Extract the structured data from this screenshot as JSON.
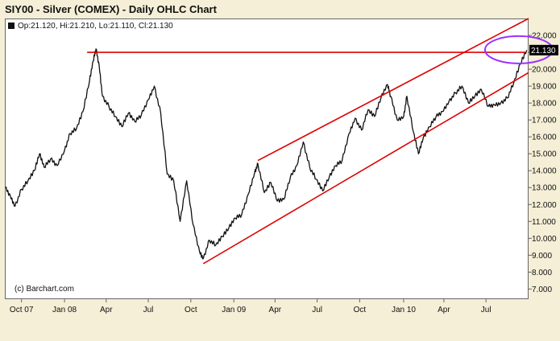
{
  "window": {
    "title": "SIY00 - Silver (COMEX) - Daily OHLC Chart"
  },
  "legend": {
    "icon": "black-square-icon",
    "ohlc": "Op:21.120, Hi:21.210, Lo:21.110, Cl:21.130"
  },
  "footer": {
    "credit": "(c) Barchart.com"
  },
  "colors": {
    "background": "#f4efd6",
    "plot": "#ffffff",
    "price": "#111111",
    "trendline": "#dd0000",
    "highlight": "#9b30ff",
    "last_price_bg": "#000000"
  },
  "chart_data": {
    "type": "line",
    "title": "SIY00 - Silver (COMEX) - Daily OHLC Chart",
    "xlabel": "",
    "ylabel": "",
    "grid": false,
    "legend_position": "top-left",
    "x_tick_labels": [
      "Oct 07",
      "Jan 08",
      "Apr",
      "Jul",
      "Oct",
      "Jan 09",
      "Apr",
      "Jul",
      "Oct",
      "Jan 10",
      "Apr",
      "Jul"
    ],
    "y_tick_labels": [
      "7.000",
      "8.000",
      "9.000",
      "10.000",
      "11.000",
      "12.000",
      "13.000",
      "14.000",
      "15.000",
      "16.000",
      "17.000",
      "18.000",
      "19.000",
      "20.000",
      "21.000",
      "22.000"
    ],
    "ylim": [
      6.4,
      23.0
    ],
    "xlim": [
      "2007-08-26",
      "2010-10-01"
    ],
    "last_price": "21.130",
    "series": [
      {
        "values": [
          {
            "x": "2007-08-27",
            "y": 13.0
          },
          {
            "x": "2007-09-07",
            "y": 12.5
          },
          {
            "x": "2007-09-17",
            "y": 11.9
          },
          {
            "x": "2007-10-01",
            "y": 12.9
          },
          {
            "x": "2007-10-15",
            "y": 13.4
          },
          {
            "x": "2007-10-29",
            "y": 14.0
          },
          {
            "x": "2007-11-09",
            "y": 15.0
          },
          {
            "x": "2007-11-19",
            "y": 14.2
          },
          {
            "x": "2007-12-03",
            "y": 14.7
          },
          {
            "x": "2007-12-17",
            "y": 14.3
          },
          {
            "x": "2008-01-02",
            "y": 15.2
          },
          {
            "x": "2008-01-14",
            "y": 16.2
          },
          {
            "x": "2008-01-28",
            "y": 16.5
          },
          {
            "x": "2008-02-11",
            "y": 17.5
          },
          {
            "x": "2008-02-25",
            "y": 19.3
          },
          {
            "x": "2008-03-04",
            "y": 20.5
          },
          {
            "x": "2008-03-10",
            "y": 21.2
          },
          {
            "x": "2008-03-17",
            "y": 20.2
          },
          {
            "x": "2008-03-24",
            "y": 18.4
          },
          {
            "x": "2008-04-07",
            "y": 17.8
          },
          {
            "x": "2008-04-21",
            "y": 17.2
          },
          {
            "x": "2008-05-05",
            "y": 16.6
          },
          {
            "x": "2008-05-19",
            "y": 17.4
          },
          {
            "x": "2008-06-02",
            "y": 16.9
          },
          {
            "x": "2008-06-16",
            "y": 17.3
          },
          {
            "x": "2008-07-01",
            "y": 18.2
          },
          {
            "x": "2008-07-14",
            "y": 19.0
          },
          {
            "x": "2008-07-28",
            "y": 17.4
          },
          {
            "x": "2008-08-11",
            "y": 13.8
          },
          {
            "x": "2008-08-25",
            "y": 13.4
          },
          {
            "x": "2008-09-08",
            "y": 11.0
          },
          {
            "x": "2008-09-22",
            "y": 13.4
          },
          {
            "x": "2008-10-06",
            "y": 10.8
          },
          {
            "x": "2008-10-20",
            "y": 9.2
          },
          {
            "x": "2008-10-28",
            "y": 8.8
          },
          {
            "x": "2008-11-10",
            "y": 9.9
          },
          {
            "x": "2008-11-24",
            "y": 9.6
          },
          {
            "x": "2008-12-08",
            "y": 10.1
          },
          {
            "x": "2008-12-22",
            "y": 10.6
          },
          {
            "x": "2009-01-05",
            "y": 11.2
          },
          {
            "x": "2009-01-19",
            "y": 11.4
          },
          {
            "x": "2009-02-02",
            "y": 12.6
          },
          {
            "x": "2009-02-16",
            "y": 13.9
          },
          {
            "x": "2009-02-23",
            "y": 14.4
          },
          {
            "x": "2009-03-09",
            "y": 12.7
          },
          {
            "x": "2009-03-23",
            "y": 13.3
          },
          {
            "x": "2009-04-06",
            "y": 12.2
          },
          {
            "x": "2009-04-20",
            "y": 12.3
          },
          {
            "x": "2009-05-04",
            "y": 13.6
          },
          {
            "x": "2009-05-18",
            "y": 14.3
          },
          {
            "x": "2009-06-01",
            "y": 15.7
          },
          {
            "x": "2009-06-15",
            "y": 14.2
          },
          {
            "x": "2009-06-29",
            "y": 13.5
          },
          {
            "x": "2009-07-13",
            "y": 12.8
          },
          {
            "x": "2009-07-27",
            "y": 13.6
          },
          {
            "x": "2009-08-10",
            "y": 14.3
          },
          {
            "x": "2009-08-24",
            "y": 14.6
          },
          {
            "x": "2009-09-08",
            "y": 16.2
          },
          {
            "x": "2009-09-21",
            "y": 17.1
          },
          {
            "x": "2009-10-05",
            "y": 16.4
          },
          {
            "x": "2009-10-19",
            "y": 17.6
          },
          {
            "x": "2009-11-02",
            "y": 17.2
          },
          {
            "x": "2009-11-16",
            "y": 18.3
          },
          {
            "x": "2009-11-30",
            "y": 19.1
          },
          {
            "x": "2009-12-07",
            "y": 18.4
          },
          {
            "x": "2009-12-21",
            "y": 17.0
          },
          {
            "x": "2010-01-04",
            "y": 17.2
          },
          {
            "x": "2010-01-11",
            "y": 18.4
          },
          {
            "x": "2010-01-25",
            "y": 16.3
          },
          {
            "x": "2010-02-05",
            "y": 15.0
          },
          {
            "x": "2010-02-15",
            "y": 15.9
          },
          {
            "x": "2010-03-01",
            "y": 16.6
          },
          {
            "x": "2010-03-15",
            "y": 17.2
          },
          {
            "x": "2010-03-29",
            "y": 17.5
          },
          {
            "x": "2010-04-12",
            "y": 18.1
          },
          {
            "x": "2010-04-26",
            "y": 18.6
          },
          {
            "x": "2010-05-10",
            "y": 19.0
          },
          {
            "x": "2010-05-24",
            "y": 18.0
          },
          {
            "x": "2010-06-07",
            "y": 18.4
          },
          {
            "x": "2010-06-21",
            "y": 18.8
          },
          {
            "x": "2010-07-06",
            "y": 17.8
          },
          {
            "x": "2010-07-19",
            "y": 17.9
          },
          {
            "x": "2010-08-02",
            "y": 18.0
          },
          {
            "x": "2010-08-16",
            "y": 18.3
          },
          {
            "x": "2010-08-30",
            "y": 19.2
          },
          {
            "x": "2010-09-13",
            "y": 20.3
          },
          {
            "x": "2010-09-27",
            "y": 21.13
          }
        ]
      }
    ],
    "annotations": [
      {
        "type": "horizontal-line",
        "y": 21.0,
        "x_start": "2008-02-25",
        "x_end": "2010-10-01"
      },
      {
        "type": "trendline",
        "points": [
          {
            "x": "2008-10-28",
            "y": 8.5
          },
          {
            "x": "2010-10-01",
            "y": 19.8
          }
        ]
      },
      {
        "type": "trendline",
        "points": [
          {
            "x": "2009-02-23",
            "y": 14.6
          },
          {
            "x": "2010-10-01",
            "y": 23.0
          }
        ]
      },
      {
        "type": "ellipse",
        "center": {
          "x": "2010-09-10",
          "y": 21.15
        }
      }
    ]
  }
}
